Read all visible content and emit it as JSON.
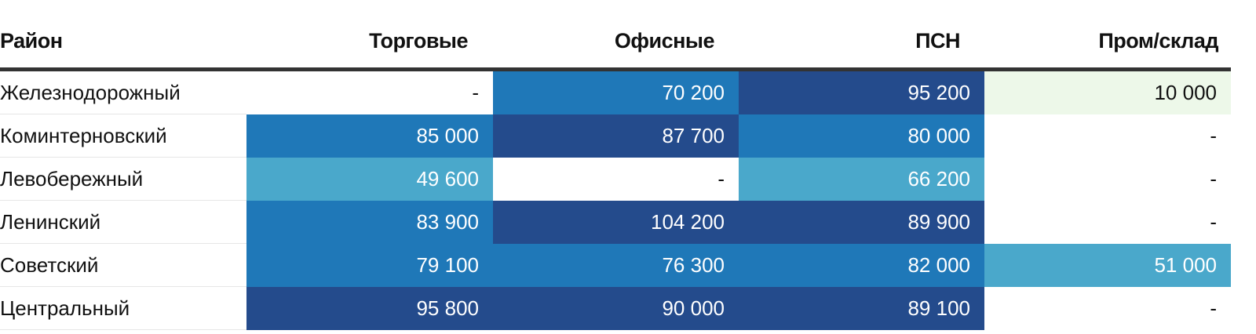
{
  "chart_data": {
    "type": "table",
    "columns": [
      "Район",
      "Торговые",
      "Офисные",
      "ПСН",
      "Пром/склад"
    ],
    "rows": [
      {
        "label": "Железнодорожный",
        "values": [
          null,
          70200,
          95200,
          10000
        ],
        "display": [
          "-",
          "70 200",
          "95 200",
          "10 000"
        ]
      },
      {
        "label": "Коминтерновский",
        "values": [
          85000,
          87700,
          80000,
          null
        ],
        "display": [
          "85 000",
          "87 700",
          "80 000",
          "-"
        ]
      },
      {
        "label": "Левобережный",
        "values": [
          49600,
          null,
          66200,
          null
        ],
        "display": [
          "49 600",
          "-",
          "66 200",
          "-"
        ]
      },
      {
        "label": "Ленинский",
        "values": [
          83900,
          104200,
          89900,
          null
        ],
        "display": [
          "83 900",
          "104 200",
          "89 900",
          "-"
        ]
      },
      {
        "label": "Советский",
        "values": [
          79100,
          76300,
          82000,
          51000
        ],
        "display": [
          "79 100",
          "76 300",
          "82 000",
          "51 000"
        ]
      },
      {
        "label": "Центральный",
        "values": [
          95800,
          90000,
          89100,
          null
        ],
        "display": [
          "95 800",
          "90 000",
          "89 100",
          "-"
        ]
      }
    ],
    "color_scale": {
      "empty": "#ffffff",
      "low": "#edf8e9",
      "mid_low": "#4aa8cb",
      "mid": "#1f78b8",
      "high": "#244b8c"
    },
    "grid": "horizontal-row-dividers"
  }
}
